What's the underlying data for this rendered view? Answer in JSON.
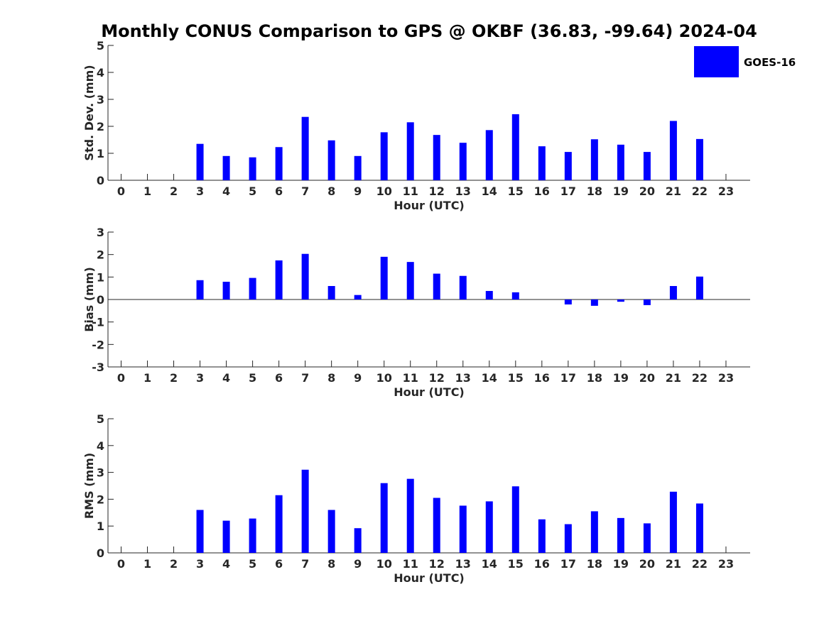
{
  "chart_data": {
    "title": "Monthly CONUS Comparison to GPS @ OKBF (36.83, -99.64) 2024-04",
    "legend": {
      "label": "GOES-16",
      "color": "#0000ff",
      "placement": "top-right"
    },
    "categories": [
      "0",
      "1",
      "2",
      "3",
      "4",
      "5",
      "6",
      "7",
      "8",
      "9",
      "10",
      "11",
      "12",
      "13",
      "14",
      "15",
      "16",
      "17",
      "18",
      "19",
      "20",
      "21",
      "22",
      "23"
    ],
    "panels": [
      {
        "type": "bar",
        "name": "std",
        "xlabel": "Hour (UTC)",
        "ylabel": "Std. Dev. (mm)",
        "ylim": [
          0,
          5
        ],
        "yticks": [
          0,
          1,
          2,
          3,
          4,
          5
        ],
        "series": [
          {
            "name": "GOES-16",
            "values": [
              null,
              null,
              null,
              1.35,
              0.9,
              0.85,
              1.23,
              2.35,
              1.48,
              0.9,
              1.78,
              2.15,
              1.68,
              1.39,
              1.86,
              2.45,
              1.26,
              1.05,
              1.52,
              1.32,
              1.05,
              2.2,
              1.53,
              null
            ]
          }
        ]
      },
      {
        "type": "bar",
        "name": "bias",
        "xlabel": "Hour (UTC)",
        "ylabel": "Bias (mm)",
        "ylim": [
          -3,
          3
        ],
        "yticks": [
          -3,
          -2,
          -1,
          0,
          1,
          2,
          3
        ],
        "series": [
          {
            "name": "GOES-16",
            "values": [
              null,
              null,
              null,
              0.86,
              0.79,
              0.96,
              1.74,
              2.03,
              0.6,
              0.2,
              1.9,
              1.67,
              1.15,
              1.05,
              0.38,
              0.32,
              null,
              -0.22,
              -0.28,
              -0.1,
              -0.25,
              0.6,
              1.02,
              null
            ]
          }
        ]
      },
      {
        "type": "bar",
        "name": "rms",
        "xlabel": "Hour (UTC)",
        "ylabel": "RMS (mm)",
        "ylim": [
          0,
          5
        ],
        "yticks": [
          0,
          1,
          2,
          3,
          4,
          5
        ],
        "series": [
          {
            "name": "GOES-16",
            "values": [
              null,
              null,
              null,
              1.6,
              1.2,
              1.28,
              2.15,
              3.1,
              1.6,
              0.92,
              2.6,
              2.76,
              2.05,
              1.76,
              1.92,
              2.48,
              1.25,
              1.07,
              1.55,
              1.3,
              1.1,
              2.28,
              1.84,
              null
            ]
          }
        ]
      }
    ]
  }
}
